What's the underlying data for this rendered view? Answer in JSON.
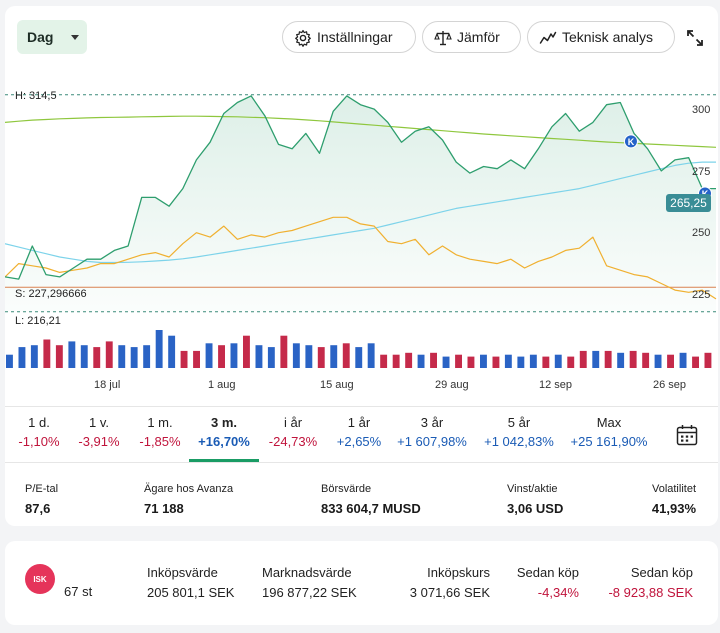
{
  "toolbar": {
    "range_value": "Dag",
    "settings_label": "Inställningar",
    "compare_label": "Jämför",
    "technical_label": "Teknisk analys"
  },
  "chart": {
    "high_label": "H: 314,5",
    "support_label": "S: 227,296666",
    "low_label": "L: 216,21",
    "last_price": "265,25",
    "marker_letter": "K",
    "y_ticks": [
      "300",
      "275",
      "250",
      "225"
    ],
    "x_ticks": [
      "18 jul",
      "1 aug",
      "15 aug",
      "29 aug",
      "12 sep",
      "26 sep"
    ],
    "colors": {
      "price": "#2e9e6e",
      "ma_long": "#8fc73e",
      "ma_mid": "#7dd3ea",
      "compare": "#f0b030",
      "support": "#e08050",
      "vol_up": "#2a63c5",
      "vol_down": "#c52a4a"
    }
  },
  "chart_data": {
    "type": "line",
    "y_range": [
      212,
      323
    ],
    "high": 314.5,
    "low": 216.21,
    "support": 227.296666,
    "last": 265.25,
    "series": [
      {
        "values": [
          232,
          231,
          246,
          233,
          232,
          236,
          240,
          240,
          244,
          246,
          268,
          268,
          264,
          272,
          285,
          293,
          306,
          311,
          314,
          305,
          292,
          290,
          297,
          288,
          307,
          314,
          310,
          308,
          302,
          293,
          298,
          300,
          294,
          284,
          279,
          282,
          281,
          285,
          281,
          290,
          300,
          306,
          298,
          302,
          310,
          311,
          297,
          290,
          280,
          285,
          286,
          272,
          272
        ]
      },
      {
        "values": [
          302,
          302.5,
          303,
          303.3,
          303.6,
          303.8,
          304,
          304.2,
          304.3,
          304.4,
          304.5,
          304.6,
          304.7,
          304.8,
          304.8,
          304.7,
          304.6,
          304.5,
          304.3,
          304.1,
          303.8,
          303.5,
          303.1,
          302.7,
          302.2,
          301.7,
          301.2,
          300.7,
          300.2,
          299.7,
          299.2,
          298.7,
          298.2,
          297.7,
          297.2,
          296.7,
          296.3,
          295.9,
          295.5,
          295.1,
          294.7,
          294.3,
          293.9,
          293.5,
          293.1,
          292.8,
          292.5,
          292.2,
          291.9,
          291.6,
          291.3,
          291.0,
          290.7
        ]
      },
      {
        "values": [
          247,
          245.5,
          244,
          242.5,
          241,
          240,
          239,
          238.5,
          238.5,
          238.6,
          238.8,
          239.2,
          239.6,
          240.2,
          241,
          242,
          243,
          244,
          245,
          246,
          247,
          248,
          249,
          250,
          251,
          252,
          253,
          254,
          255.5,
          257,
          258.5,
          260,
          261.5,
          263,
          264,
          265,
          266,
          267,
          268,
          269,
          270,
          271,
          272,
          273.5,
          275,
          276.5,
          278,
          279.5,
          281,
          282.5,
          283.5,
          284,
          284
        ]
      },
      {
        "values": [
          232,
          238,
          237,
          236,
          234,
          235,
          236,
          238,
          238,
          240,
          242,
          243,
          241,
          247,
          252,
          250,
          255,
          249,
          251,
          250,
          252,
          253,
          255,
          257,
          259,
          259,
          256,
          255,
          248,
          247,
          249,
          242,
          246,
          242,
          240,
          239,
          238,
          240,
          236,
          239,
          241,
          244,
          245,
          250,
          237,
          235,
          233,
          232,
          229,
          226,
          225,
          226,
          222
        ]
      }
    ],
    "volume": [
      {
        "v": 0.35,
        "dir": "up"
      },
      {
        "v": 0.55,
        "dir": "up"
      },
      {
        "v": 0.6,
        "dir": "up"
      },
      {
        "v": 0.75,
        "dir": "down"
      },
      {
        "v": 0.6,
        "dir": "down"
      },
      {
        "v": 0.7,
        "dir": "up"
      },
      {
        "v": 0.6,
        "dir": "up"
      },
      {
        "v": 0.55,
        "dir": "down"
      },
      {
        "v": 0.7,
        "dir": "down"
      },
      {
        "v": 0.6,
        "dir": "up"
      },
      {
        "v": 0.55,
        "dir": "up"
      },
      {
        "v": 0.6,
        "dir": "up"
      },
      {
        "v": 1.0,
        "dir": "up"
      },
      {
        "v": 0.85,
        "dir": "up"
      },
      {
        "v": 0.45,
        "dir": "down"
      },
      {
        "v": 0.45,
        "dir": "down"
      },
      {
        "v": 0.65,
        "dir": "up"
      },
      {
        "v": 0.6,
        "dir": "down"
      },
      {
        "v": 0.65,
        "dir": "up"
      },
      {
        "v": 0.85,
        "dir": "down"
      },
      {
        "v": 0.6,
        "dir": "up"
      },
      {
        "v": 0.55,
        "dir": "up"
      },
      {
        "v": 0.85,
        "dir": "down"
      },
      {
        "v": 0.65,
        "dir": "up"
      },
      {
        "v": 0.6,
        "dir": "up"
      },
      {
        "v": 0.55,
        "dir": "down"
      },
      {
        "v": 0.6,
        "dir": "up"
      },
      {
        "v": 0.65,
        "dir": "down"
      },
      {
        "v": 0.55,
        "dir": "up"
      },
      {
        "v": 0.65,
        "dir": "up"
      },
      {
        "v": 0.35,
        "dir": "down"
      },
      {
        "v": 0.35,
        "dir": "down"
      },
      {
        "v": 0.4,
        "dir": "down"
      },
      {
        "v": 0.35,
        "dir": "up"
      },
      {
        "v": 0.4,
        "dir": "down"
      },
      {
        "v": 0.3,
        "dir": "up"
      },
      {
        "v": 0.35,
        "dir": "down"
      },
      {
        "v": 0.3,
        "dir": "down"
      },
      {
        "v": 0.35,
        "dir": "up"
      },
      {
        "v": 0.3,
        "dir": "down"
      },
      {
        "v": 0.35,
        "dir": "up"
      },
      {
        "v": 0.3,
        "dir": "up"
      },
      {
        "v": 0.35,
        "dir": "up"
      },
      {
        "v": 0.3,
        "dir": "down"
      },
      {
        "v": 0.35,
        "dir": "up"
      },
      {
        "v": 0.3,
        "dir": "down"
      },
      {
        "v": 0.45,
        "dir": "down"
      },
      {
        "v": 0.45,
        "dir": "up"
      },
      {
        "v": 0.45,
        "dir": "down"
      },
      {
        "v": 0.4,
        "dir": "up"
      },
      {
        "v": 0.45,
        "dir": "down"
      },
      {
        "v": 0.4,
        "dir": "down"
      },
      {
        "v": 0.35,
        "dir": "up"
      },
      {
        "v": 0.35,
        "dir": "down"
      },
      {
        "v": 0.4,
        "dir": "up"
      },
      {
        "v": 0.3,
        "dir": "down"
      },
      {
        "v": 0.4,
        "dir": "down"
      }
    ]
  },
  "periods": [
    {
      "label": "1 d.",
      "value": "-1,10%",
      "tone": "neg"
    },
    {
      "label": "1 v.",
      "value": "-3,91%",
      "tone": "neg"
    },
    {
      "label": "1 m.",
      "value": "-1,85%",
      "tone": "neg"
    },
    {
      "label": "3 m.",
      "value": "+16,70%",
      "tone": "pos",
      "active": true
    },
    {
      "label": "i år",
      "value": "-24,73%",
      "tone": "neg"
    },
    {
      "label": "1 år",
      "value": "+2,65%",
      "tone": "pos"
    },
    {
      "label": "3 år",
      "value": "+1 607,98%",
      "tone": "pos"
    },
    {
      "label": "5 år",
      "value": "+1 042,83%",
      "tone": "pos"
    },
    {
      "label": "Max",
      "value": "+25 161,90%",
      "tone": "pos"
    }
  ],
  "key_figures": {
    "pe_label": "P/E-tal",
    "pe_value": "87,6",
    "owners_label": "Ägare hos Avanza",
    "owners_value": "71 188",
    "mcap_label": "Börsvärde",
    "mcap_value": "833 604,7 MUSD",
    "eps_label": "Vinst/aktie",
    "eps_value": "3,06 USD",
    "vol_label": "Volatilitet",
    "vol_value": "41,93%"
  },
  "position": {
    "account_badge": "ISK",
    "quantity": "67 st",
    "purchase_value_label": "Inköpsvärde",
    "purchase_value": "205 801,1 SEK",
    "market_value_label": "Marknadsvärde",
    "market_value": "196 877,22 SEK",
    "purchase_price_label": "Inköpskurs",
    "purchase_price": "3 071,66 SEK",
    "since_buy_pct_label": "Sedan köp",
    "since_buy_pct": "-4,34%",
    "since_buy_sek_label": "Sedan köp",
    "since_buy_sek": "-8 923,88 SEK"
  }
}
